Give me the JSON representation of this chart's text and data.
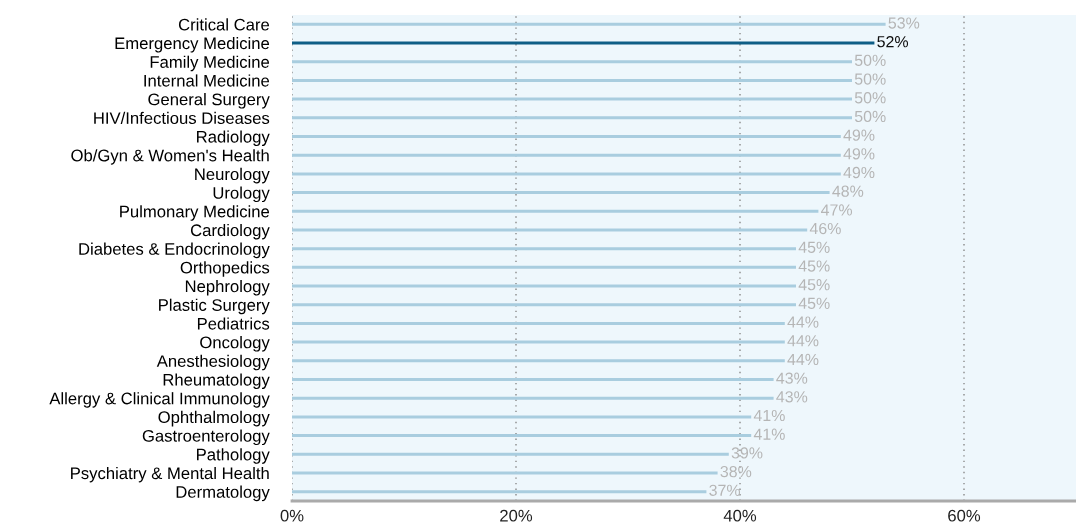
{
  "chart_data": {
    "type": "bar",
    "orientation": "horizontal",
    "categories": [
      "Critical Care",
      "Emergency Medicine",
      "Family Medicine",
      "Internal Medicine",
      "General Surgery",
      "HIV/Infectious Diseases",
      "Radiology",
      "Ob/Gyn & Women's Health",
      "Neurology",
      "Urology",
      "Pulmonary Medicine",
      "Cardiology",
      "Diabetes & Endocrinology",
      "Orthopedics",
      "Nephrology",
      "Plastic Surgery",
      "Pediatrics",
      "Oncology",
      "Anesthesiology",
      "Rheumatology",
      "Allergy & Clinical Immunology",
      "Ophthalmology",
      "Gastroenterology",
      "Pathology",
      "Psychiatry & Mental Health",
      "Dermatology"
    ],
    "values": [
      53,
      52,
      50,
      50,
      50,
      50,
      49,
      49,
      49,
      48,
      47,
      46,
      45,
      45,
      45,
      45,
      44,
      44,
      44,
      43,
      43,
      41,
      41,
      39,
      38,
      37
    ],
    "colors": [
      "#a9cddf",
      "#0e5e86",
      "#a9cddf",
      "#a9cddf",
      "#a9cddf",
      "#a9cddf",
      "#a9cddf",
      "#a9cddf",
      "#a9cddf",
      "#a9cddf",
      "#a9cddf",
      "#a9cddf",
      "#a9cddf",
      "#a9cddf",
      "#a9cddf",
      "#a9cddf",
      "#a9cddf",
      "#a9cddf",
      "#a9cddf",
      "#a9cddf",
      "#a9cddf",
      "#a9cddf",
      "#a9cddf",
      "#a9cddf",
      "#a9cddf",
      "#a9cddf"
    ],
    "value_labels": [
      "53%",
      "52%",
      "50%",
      "50%",
      "50%",
      "50%",
      "49%",
      "49%",
      "49%",
      "48%",
      "47%",
      "46%",
      "45%",
      "45%",
      "45%",
      "45%",
      "44%",
      "44%",
      "44%",
      "43%",
      "43%",
      "41%",
      "41%",
      "39%",
      "38%",
      "37%"
    ],
    "xlim": [
      0,
      70
    ],
    "xticks": [
      {
        "value": 0,
        "label": "0%"
      },
      {
        "value": 20,
        "label": "20%"
      },
      {
        "value": 40,
        "label": "40%"
      },
      {
        "value": 60,
        "label": "60%"
      }
    ],
    "grid": "x"
  }
}
